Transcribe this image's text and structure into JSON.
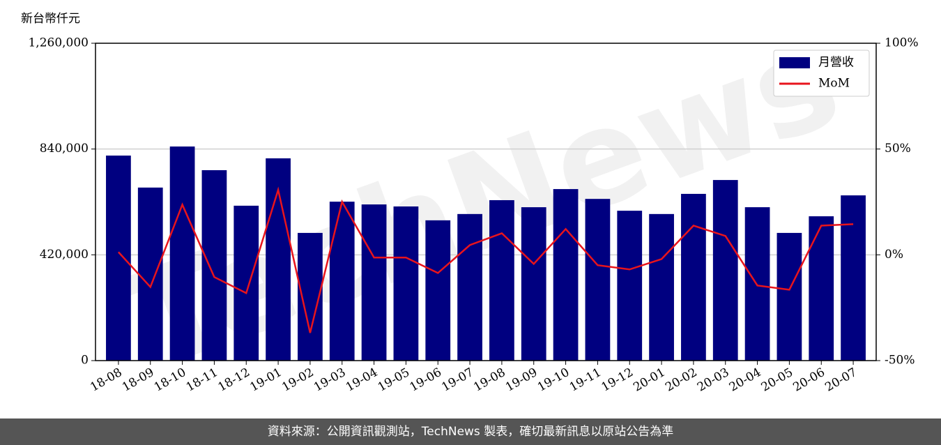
{
  "chart_data": {
    "type": "bar_line",
    "y_label": "新台幣仟元",
    "categories": [
      "18-08",
      "18-09",
      "18-10",
      "18-11",
      "18-12",
      "19-01",
      "19-02",
      "19-03",
      "19-04",
      "19-05",
      "19-06",
      "19-07",
      "19-08",
      "19-09",
      "19-10",
      "19-11",
      "19-12",
      "20-01",
      "20-02",
      "20-03",
      "20-04",
      "20-05",
      "20-06",
      "20-07"
    ],
    "series": [
      {
        "name": "月營收",
        "type": "bar",
        "color": "#000080",
        "values": [
          814000,
          687000,
          850000,
          756000,
          615000,
          803000,
          507000,
          631000,
          620000,
          612000,
          557000,
          582000,
          637000,
          609000,
          681000,
          642000,
          595000,
          582000,
          662000,
          717000,
          609000,
          507000,
          573000,
          656000
        ]
      },
      {
        "name": "MoM",
        "type": "line",
        "axis": "y2",
        "color": "#e8141c",
        "values": [
          1.3,
          -15.2,
          23.7,
          -10.5,
          -18.1,
          30.7,
          -36.9,
          25.1,
          -1.3,
          -1.3,
          -8.6,
          4.6,
          10.2,
          -4.3,
          12.2,
          -4.9,
          -6.9,
          -2.0,
          13.8,
          8.9,
          -14.5,
          -16.5,
          13.8,
          14.5
        ]
      }
    ],
    "ylim": [
      0,
      1260000
    ],
    "yticks": [
      0,
      {
        "value": 420000,
        "label": "420,000"
      },
      {
        "value": 840000,
        "label": "840,000"
      },
      {
        "value": 1260000,
        "label": "1,260,000"
      }
    ],
    "y2lim": [
      -50,
      100
    ],
    "y2ticks": [
      {
        "value": -50,
        "label": "-50%"
      },
      {
        "value": 0,
        "label": "0%"
      },
      {
        "value": 50,
        "label": "50%"
      },
      {
        "value": 100,
        "label": "100%"
      }
    ],
    "grid": true,
    "legend": "upper right",
    "watermark": "TechNews",
    "footer": "資料來源：公開資訊觀測站，TechNews 製表，確切最新訊息以原站公告為準"
  }
}
